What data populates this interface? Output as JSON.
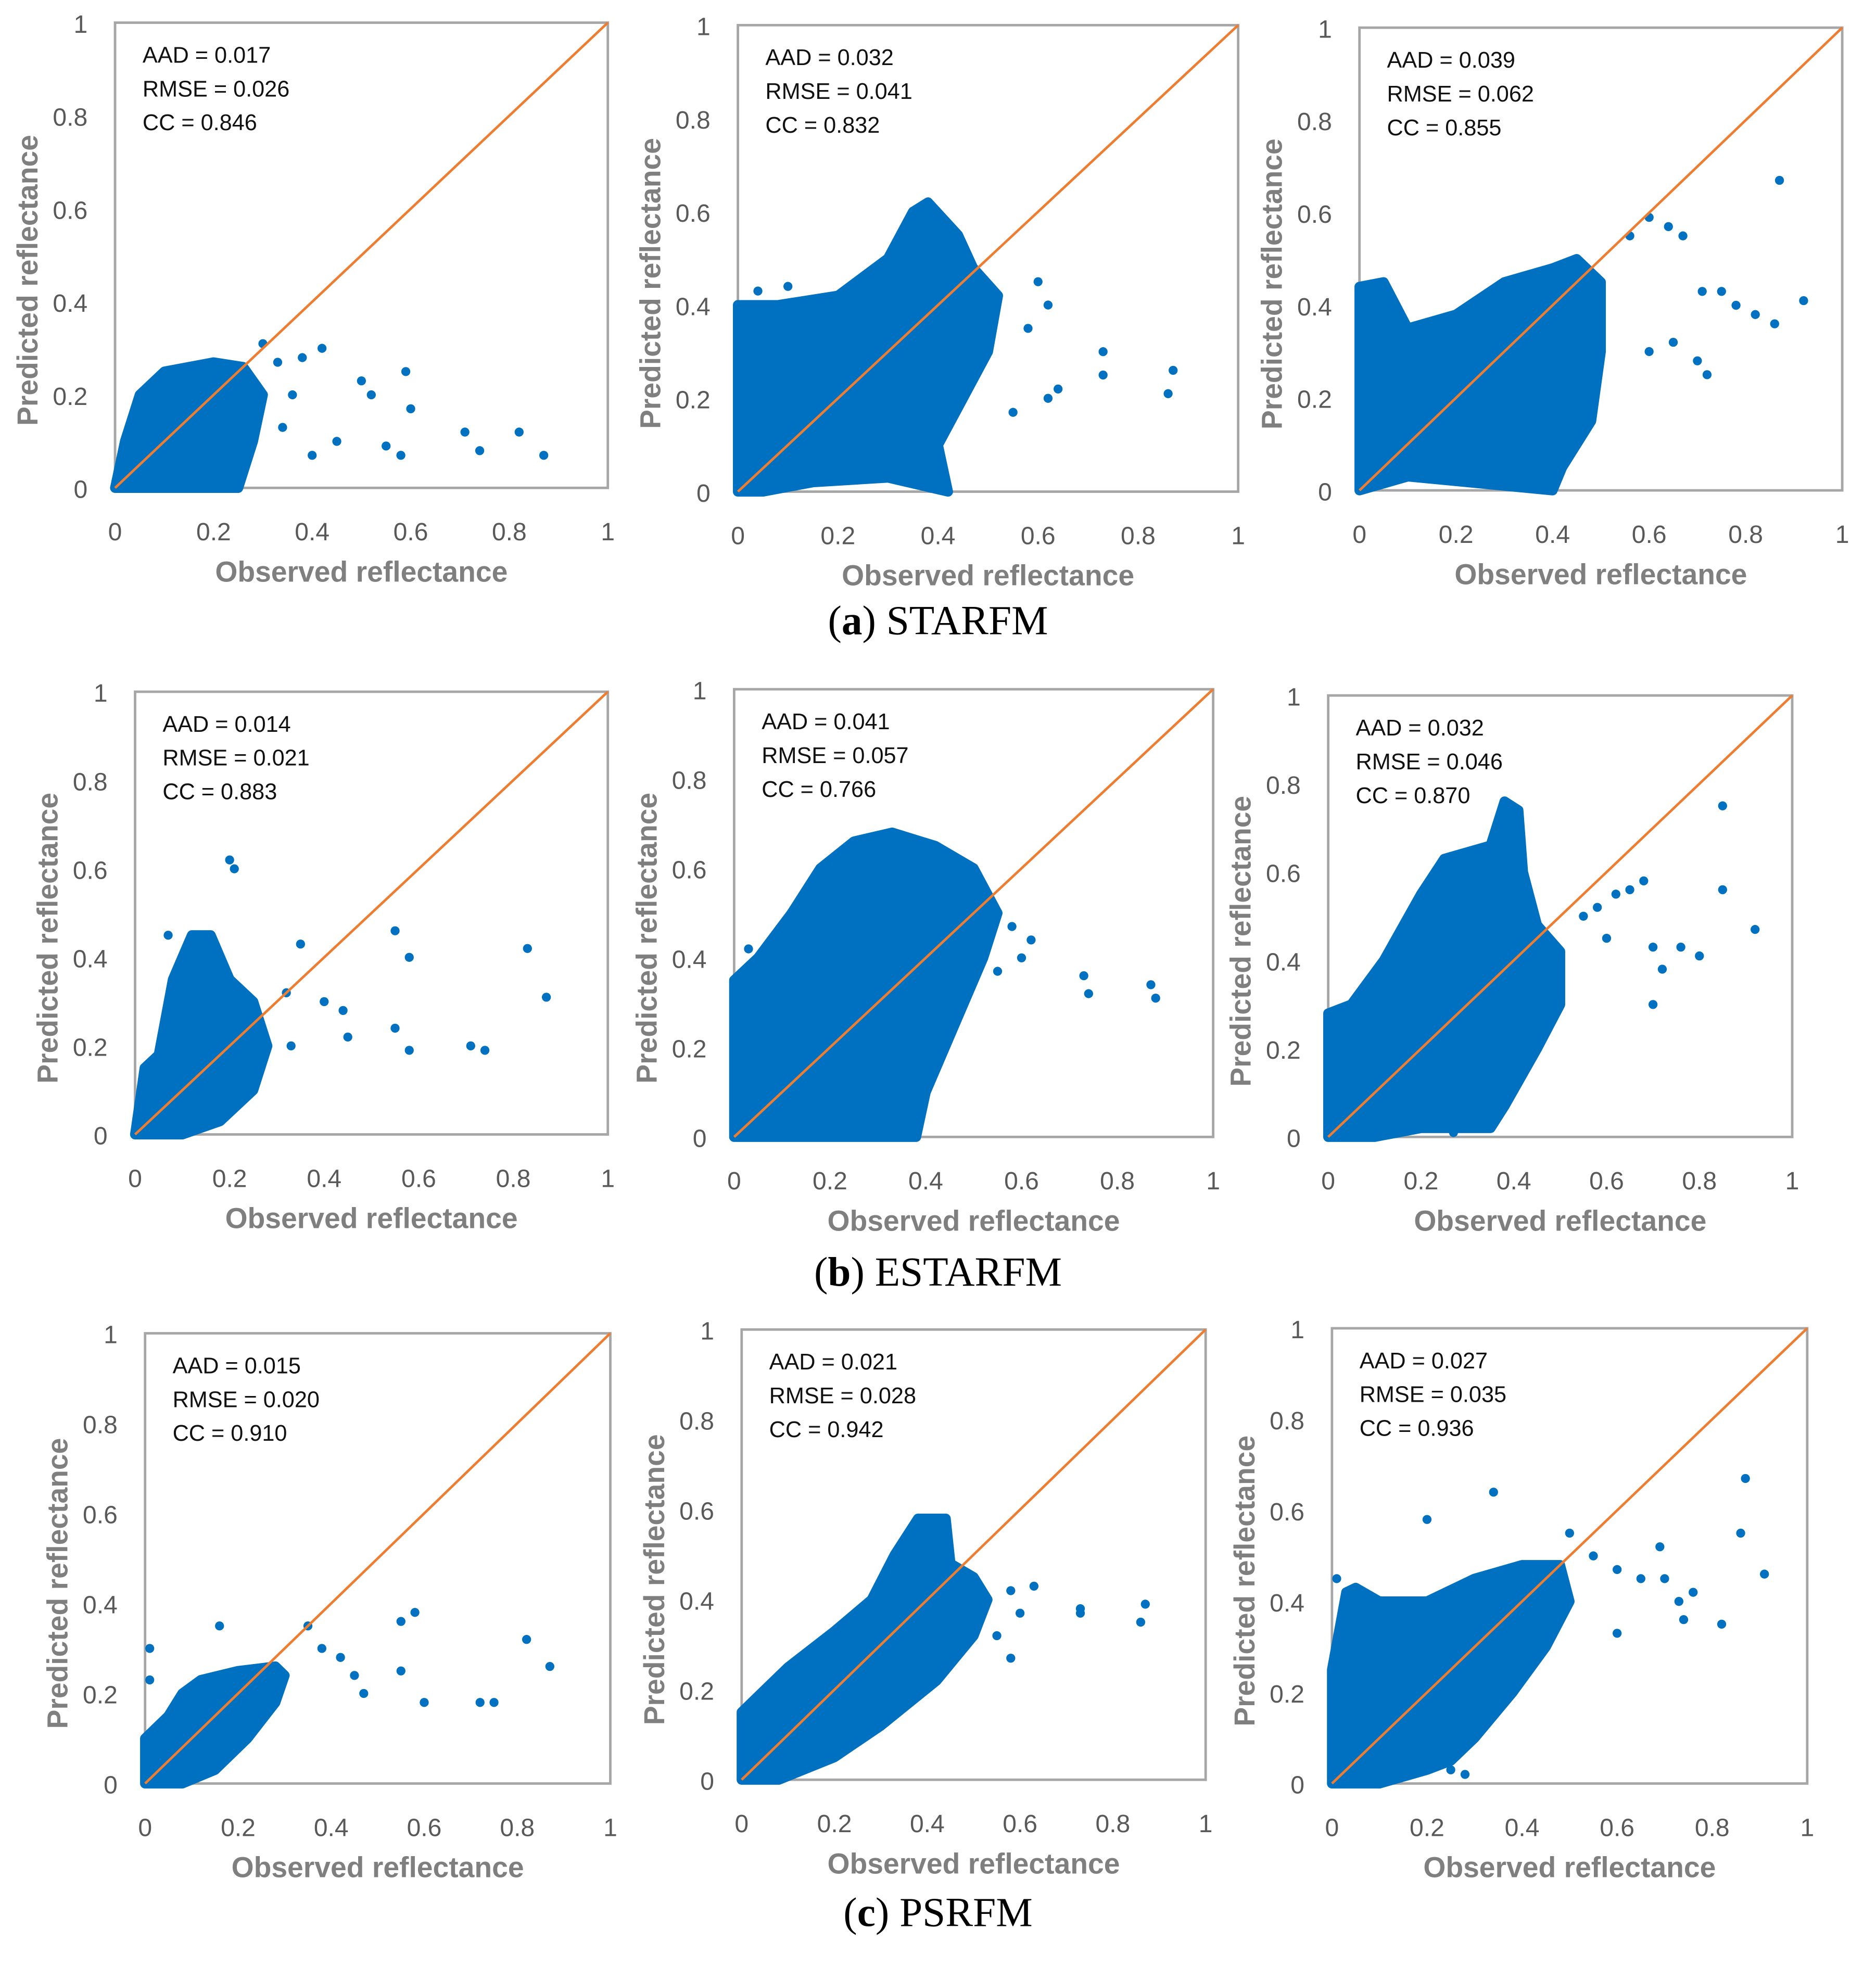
{
  "colors": {
    "points": "#0070C0",
    "identity_line": "#ED7D31",
    "axis": "#A6A6A6",
    "tick_text": "#595959",
    "axis_label": "#7F7F7F"
  },
  "captions": [
    {
      "letter": "a",
      "open": "(",
      "close": ") ",
      "method": "STARFM"
    },
    {
      "letter": "b",
      "open": "(",
      "close": ") ",
      "method": "ESTARFM"
    },
    {
      "letter": "c",
      "open": "(",
      "close": ") ",
      "method": "PSRFM"
    }
  ],
  "chart_data": [
    {
      "type": "scatter",
      "group": "a",
      "method": "STARFM",
      "xlabel": "Observed reflectance",
      "ylabel": "Predicted reflectance",
      "xlim": [
        0,
        1
      ],
      "ylim": [
        0,
        1
      ],
      "xticks": [
        "0",
        "0.2",
        "0.4",
        "0.6",
        "0.8",
        "1"
      ],
      "yticks": [
        "0",
        "0.2",
        "0.4",
        "0.6",
        "0.8",
        "1"
      ],
      "identity_line": true,
      "stats": [
        "AAD = 0.017",
        "RMSE = 0.026",
        "CC = 0.846"
      ],
      "dense_cloud": [
        [
          0,
          0
        ],
        [
          0.02,
          0.1
        ],
        [
          0.05,
          0.2
        ],
        [
          0.1,
          0.25
        ],
        [
          0.2,
          0.27
        ],
        [
          0.26,
          0.26
        ],
        [
          0.3,
          0.2
        ],
        [
          0.28,
          0.1
        ],
        [
          0.25,
          0
        ],
        [
          0.05,
          0
        ]
      ],
      "points": [
        [
          0.3,
          0.31
        ],
        [
          0.33,
          0.27
        ],
        [
          0.38,
          0.28
        ],
        [
          0.42,
          0.3
        ],
        [
          0.36,
          0.2
        ],
        [
          0.5,
          0.23
        ],
        [
          0.52,
          0.2
        ],
        [
          0.59,
          0.25
        ],
        [
          0.6,
          0.17
        ],
        [
          0.71,
          0.12
        ],
        [
          0.74,
          0.08
        ],
        [
          0.82,
          0.12
        ],
        [
          0.87,
          0.07
        ],
        [
          0.4,
          0.07
        ],
        [
          0.45,
          0.1
        ],
        [
          0.55,
          0.09
        ],
        [
          0.58,
          0.07
        ],
        [
          0.34,
          0.13
        ]
      ]
    },
    {
      "type": "scatter",
      "group": "a",
      "method": "STARFM",
      "xlabel": "Observed reflectance",
      "ylabel": "Predicted reflectance",
      "xlim": [
        0,
        1
      ],
      "ylim": [
        0,
        1
      ],
      "xticks": [
        "0",
        "0.2",
        "0.4",
        "0.6",
        "0.8",
        "1"
      ],
      "yticks": [
        "0",
        "0.2",
        "0.4",
        "0.6",
        "0.8",
        "1"
      ],
      "identity_line": true,
      "stats": [
        "AAD = 0.032",
        "RMSE = 0.041",
        "CC = 0.832"
      ],
      "dense_cloud": [
        [
          0,
          0
        ],
        [
          0,
          0.4
        ],
        [
          0.08,
          0.4
        ],
        [
          0.2,
          0.42
        ],
        [
          0.3,
          0.5
        ],
        [
          0.35,
          0.6
        ],
        [
          0.38,
          0.62
        ],
        [
          0.44,
          0.55
        ],
        [
          0.47,
          0.48
        ],
        [
          0.52,
          0.42
        ],
        [
          0.5,
          0.3
        ],
        [
          0.45,
          0.2
        ],
        [
          0.4,
          0.1
        ],
        [
          0.42,
          0
        ],
        [
          0.3,
          0.03
        ],
        [
          0.15,
          0.02
        ],
        [
          0.05,
          0
        ]
      ],
      "points": [
        [
          0.6,
          0.45
        ],
        [
          0.62,
          0.4
        ],
        [
          0.58,
          0.35
        ],
        [
          0.73,
          0.3
        ],
        [
          0.73,
          0.25
        ],
        [
          0.87,
          0.26
        ],
        [
          0.86,
          0.21
        ],
        [
          0.64,
          0.22
        ],
        [
          0.62,
          0.2
        ],
        [
          0.55,
          0.17
        ],
        [
          0.1,
          0.44
        ],
        [
          0.04,
          0.43
        ]
      ]
    },
    {
      "type": "scatter",
      "group": "a",
      "method": "STARFM",
      "xlabel": "Observed reflectance",
      "ylabel": "Predicted reflectance",
      "xlim": [
        0,
        1
      ],
      "ylim": [
        0,
        1
      ],
      "xticks": [
        "0",
        "0.2",
        "0.4",
        "0.6",
        "0.8",
        "1"
      ],
      "yticks": [
        "0",
        "0.2",
        "0.4",
        "0.6",
        "0.8",
        "1"
      ],
      "identity_line": true,
      "stats": [
        "AAD = 0.039",
        "RMSE = 0.062",
        "CC = 0.855"
      ],
      "dense_cloud": [
        [
          0,
          0
        ],
        [
          0,
          0.44
        ],
        [
          0.05,
          0.45
        ],
        [
          0.1,
          0.35
        ],
        [
          0.2,
          0.38
        ],
        [
          0.3,
          0.45
        ],
        [
          0.4,
          0.48
        ],
        [
          0.45,
          0.5
        ],
        [
          0.5,
          0.45
        ],
        [
          0.5,
          0.3
        ],
        [
          0.48,
          0.15
        ],
        [
          0.42,
          0.05
        ],
        [
          0.4,
          0
        ],
        [
          0.2,
          0.02
        ],
        [
          0.1,
          0.03
        ]
      ],
      "points": [
        [
          0.56,
          0.55
        ],
        [
          0.6,
          0.59
        ],
        [
          0.64,
          0.57
        ],
        [
          0.67,
          0.55
        ],
        [
          0.71,
          0.43
        ],
        [
          0.75,
          0.43
        ],
        [
          0.78,
          0.4
        ],
        [
          0.82,
          0.38
        ],
        [
          0.86,
          0.36
        ],
        [
          0.92,
          0.41
        ],
        [
          0.87,
          0.67
        ],
        [
          0.6,
          0.3
        ],
        [
          0.65,
          0.32
        ],
        [
          0.7,
          0.28
        ],
        [
          0.72,
          0.25
        ]
      ]
    },
    {
      "type": "scatter",
      "group": "b",
      "method": "ESTARFM",
      "xlabel": "Observed reflectance",
      "ylabel": "Predicted reflectance",
      "xlim": [
        0,
        1
      ],
      "ylim": [
        0,
        1
      ],
      "xticks": [
        "0",
        "0.2",
        "0.4",
        "0.6",
        "0.8",
        "1"
      ],
      "yticks": [
        "0",
        "0.2",
        "0.4",
        "0.6",
        "0.8",
        "1"
      ],
      "identity_line": true,
      "stats": [
        "AAD = 0.014",
        "RMSE = 0.021",
        "CC = 0.883"
      ],
      "dense_cloud": [
        [
          0,
          0
        ],
        [
          0.02,
          0.15
        ],
        [
          0.05,
          0.18
        ],
        [
          0.08,
          0.35
        ],
        [
          0.12,
          0.45
        ],
        [
          0.16,
          0.45
        ],
        [
          0.2,
          0.35
        ],
        [
          0.25,
          0.3
        ],
        [
          0.28,
          0.2
        ],
        [
          0.25,
          0.1
        ],
        [
          0.18,
          0.03
        ],
        [
          0.1,
          0
        ]
      ],
      "points": [
        [
          0.2,
          0.62
        ],
        [
          0.21,
          0.6
        ],
        [
          0.07,
          0.45
        ],
        [
          0.35,
          0.43
        ],
        [
          0.32,
          0.32
        ],
        [
          0.4,
          0.3
        ],
        [
          0.44,
          0.28
        ],
        [
          0.55,
          0.46
        ],
        [
          0.58,
          0.4
        ],
        [
          0.55,
          0.24
        ],
        [
          0.58,
          0.19
        ],
        [
          0.71,
          0.2
        ],
        [
          0.74,
          0.19
        ],
        [
          0.83,
          0.42
        ],
        [
          0.87,
          0.31
        ],
        [
          0.45,
          0.22
        ],
        [
          0.33,
          0.2
        ]
      ]
    },
    {
      "type": "scatter",
      "group": "b",
      "method": "ESTARFM",
      "xlabel": "Observed reflectance",
      "ylabel": "Predicted reflectance",
      "xlim": [
        0,
        1
      ],
      "ylim": [
        0,
        1
      ],
      "xticks": [
        "0",
        "0.2",
        "0.4",
        "0.6",
        "0.8",
        "1"
      ],
      "yticks": [
        "0",
        "0.2",
        "0.4",
        "0.6",
        "0.8",
        "1"
      ],
      "identity_line": true,
      "stats": [
        "AAD = 0.041",
        "RMSE = 0.057",
        "CC = 0.766"
      ],
      "dense_cloud": [
        [
          0,
          0
        ],
        [
          0,
          0.35
        ],
        [
          0.05,
          0.4
        ],
        [
          0.12,
          0.5
        ],
        [
          0.18,
          0.6
        ],
        [
          0.25,
          0.66
        ],
        [
          0.33,
          0.68
        ],
        [
          0.42,
          0.65
        ],
        [
          0.5,
          0.6
        ],
        [
          0.55,
          0.5
        ],
        [
          0.52,
          0.4
        ],
        [
          0.46,
          0.25
        ],
        [
          0.4,
          0.1
        ],
        [
          0.38,
          0
        ],
        [
          0.2,
          0
        ]
      ],
      "points": [
        [
          0.58,
          0.47
        ],
        [
          0.62,
          0.44
        ],
        [
          0.55,
          0.37
        ],
        [
          0.73,
          0.36
        ],
        [
          0.74,
          0.32
        ],
        [
          0.87,
          0.34
        ],
        [
          0.88,
          0.31
        ],
        [
          0.6,
          0.4
        ],
        [
          0.03,
          0.42
        ]
      ]
    },
    {
      "type": "scatter",
      "group": "b",
      "method": "ESTARFM",
      "xlabel": "Observed reflectance",
      "ylabel": "Predicted reflectance",
      "xlim": [
        0,
        1
      ],
      "ylim": [
        0,
        1
      ],
      "xticks": [
        "0",
        "0.2",
        "0.4",
        "0.6",
        "0.8",
        "1"
      ],
      "yticks": [
        "0",
        "0.2",
        "0.4",
        "0.6",
        "0.8",
        "1"
      ],
      "identity_line": true,
      "stats": [
        "AAD = 0.032",
        "RMSE = 0.046",
        "CC = 0.870"
      ],
      "dense_cloud": [
        [
          0,
          0
        ],
        [
          0,
          0.28
        ],
        [
          0.05,
          0.3
        ],
        [
          0.12,
          0.4
        ],
        [
          0.2,
          0.55
        ],
        [
          0.25,
          0.63
        ],
        [
          0.35,
          0.66
        ],
        [
          0.38,
          0.76
        ],
        [
          0.41,
          0.74
        ],
        [
          0.42,
          0.6
        ],
        [
          0.45,
          0.48
        ],
        [
          0.5,
          0.42
        ],
        [
          0.5,
          0.3
        ],
        [
          0.45,
          0.2
        ],
        [
          0.38,
          0.07
        ],
        [
          0.35,
          0.02
        ],
        [
          0.2,
          0.02
        ],
        [
          0.1,
          0
        ]
      ],
      "points": [
        [
          0.55,
          0.5
        ],
        [
          0.58,
          0.52
        ],
        [
          0.62,
          0.55
        ],
        [
          0.65,
          0.56
        ],
        [
          0.68,
          0.58
        ],
        [
          0.6,
          0.45
        ],
        [
          0.7,
          0.43
        ],
        [
          0.72,
          0.38
        ],
        [
          0.7,
          0.3
        ],
        [
          0.76,
          0.43
        ],
        [
          0.8,
          0.41
        ],
        [
          0.85,
          0.75
        ],
        [
          0.85,
          0.56
        ],
        [
          0.92,
          0.47
        ],
        [
          0.27,
          0.01
        ],
        [
          0.32,
          0.02
        ]
      ]
    },
    {
      "type": "scatter",
      "group": "c",
      "method": "PSRFM",
      "xlabel": "Observed reflectance",
      "ylabel": "Predicted reflectance",
      "xlim": [
        0,
        1
      ],
      "ylim": [
        0,
        1
      ],
      "xticks": [
        "0",
        "0.2",
        "0.4",
        "0.6",
        "0.8",
        "1"
      ],
      "yticks": [
        "0",
        "0.2",
        "0.4",
        "0.6",
        "0.8",
        "1"
      ],
      "identity_line": true,
      "stats": [
        "AAD = 0.015",
        "RMSE = 0.020",
        "CC = 0.910"
      ],
      "dense_cloud": [
        [
          0,
          0
        ],
        [
          0,
          0.1
        ],
        [
          0.05,
          0.15
        ],
        [
          0.08,
          0.2
        ],
        [
          0.12,
          0.23
        ],
        [
          0.2,
          0.25
        ],
        [
          0.28,
          0.26
        ],
        [
          0.3,
          0.24
        ],
        [
          0.28,
          0.18
        ],
        [
          0.22,
          0.1
        ],
        [
          0.15,
          0.03
        ],
        [
          0.08,
          0
        ]
      ],
      "points": [
        [
          0.01,
          0.3
        ],
        [
          0.01,
          0.23
        ],
        [
          0.16,
          0.35
        ],
        [
          0.35,
          0.35
        ],
        [
          0.38,
          0.3
        ],
        [
          0.42,
          0.28
        ],
        [
          0.45,
          0.24
        ],
        [
          0.47,
          0.2
        ],
        [
          0.55,
          0.36
        ],
        [
          0.58,
          0.38
        ],
        [
          0.55,
          0.25
        ],
        [
          0.6,
          0.18
        ],
        [
          0.72,
          0.18
        ],
        [
          0.75,
          0.18
        ],
        [
          0.82,
          0.32
        ],
        [
          0.87,
          0.26
        ]
      ]
    },
    {
      "type": "scatter",
      "group": "c",
      "method": "PSRFM",
      "xlabel": "Observed reflectance",
      "ylabel": "Predicted reflectance",
      "xlim": [
        0,
        1
      ],
      "ylim": [
        0,
        1
      ],
      "xticks": [
        "0",
        "0.2",
        "0.4",
        "0.6",
        "0.8",
        "1"
      ],
      "yticks": [
        "0",
        "0.2",
        "0.4",
        "0.6",
        "0.8",
        "1"
      ],
      "identity_line": true,
      "stats": [
        "AAD = 0.021",
        "RMSE = 0.028",
        "CC = 0.942"
      ],
      "dense_cloud": [
        [
          0,
          0
        ],
        [
          0,
          0.15
        ],
        [
          0.05,
          0.2
        ],
        [
          0.1,
          0.25
        ],
        [
          0.2,
          0.33
        ],
        [
          0.28,
          0.4
        ],
        [
          0.33,
          0.5
        ],
        [
          0.38,
          0.58
        ],
        [
          0.44,
          0.58
        ],
        [
          0.45,
          0.48
        ],
        [
          0.5,
          0.45
        ],
        [
          0.53,
          0.4
        ],
        [
          0.5,
          0.32
        ],
        [
          0.42,
          0.22
        ],
        [
          0.3,
          0.12
        ],
        [
          0.2,
          0.05
        ],
        [
          0.08,
          0
        ]
      ],
      "points": [
        [
          0.58,
          0.42
        ],
        [
          0.63,
          0.43
        ],
        [
          0.6,
          0.37
        ],
        [
          0.73,
          0.37
        ],
        [
          0.73,
          0.38
        ],
        [
          0.87,
          0.39
        ],
        [
          0.86,
          0.35
        ],
        [
          0.58,
          0.27
        ],
        [
          0.55,
          0.32
        ]
      ]
    },
    {
      "type": "scatter",
      "group": "c",
      "method": "PSRFM",
      "xlabel": "Observed reflectance",
      "ylabel": "Predicted reflectance",
      "xlim": [
        0,
        1
      ],
      "ylim": [
        0,
        1
      ],
      "xticks": [
        "0",
        "0.2",
        "0.4",
        "0.6",
        "0.8",
        "1"
      ],
      "yticks": [
        "0",
        "0.2",
        "0.4",
        "0.6",
        "0.8",
        "1"
      ],
      "identity_line": true,
      "stats": [
        "AAD = 0.027",
        "RMSE = 0.035",
        "CC = 0.936"
      ],
      "dense_cloud": [
        [
          0,
          0
        ],
        [
          0,
          0.25
        ],
        [
          0.03,
          0.42
        ],
        [
          0.05,
          0.43
        ],
        [
          0.1,
          0.4
        ],
        [
          0.2,
          0.4
        ],
        [
          0.3,
          0.45
        ],
        [
          0.4,
          0.48
        ],
        [
          0.48,
          0.48
        ],
        [
          0.5,
          0.4
        ],
        [
          0.45,
          0.3
        ],
        [
          0.38,
          0.2
        ],
        [
          0.3,
          0.1
        ],
        [
          0.25,
          0.05
        ],
        [
          0.2,
          0.03
        ],
        [
          0.1,
          0
        ]
      ],
      "points": [
        [
          0.34,
          0.64
        ],
        [
          0.5,
          0.55
        ],
        [
          0.55,
          0.5
        ],
        [
          0.6,
          0.47
        ],
        [
          0.65,
          0.45
        ],
        [
          0.69,
          0.52
        ],
        [
          0.7,
          0.45
        ],
        [
          0.73,
          0.4
        ],
        [
          0.76,
          0.42
        ],
        [
          0.82,
          0.35
        ],
        [
          0.87,
          0.67
        ],
        [
          0.86,
          0.55
        ],
        [
          0.91,
          0.46
        ],
        [
          0.74,
          0.36
        ],
        [
          0.6,
          0.33
        ],
        [
          0.25,
          0.03
        ],
        [
          0.28,
          0.02
        ],
        [
          0.2,
          0.58
        ],
        [
          0.01,
          0.45
        ],
        [
          0.05,
          0.42
        ]
      ]
    }
  ]
}
